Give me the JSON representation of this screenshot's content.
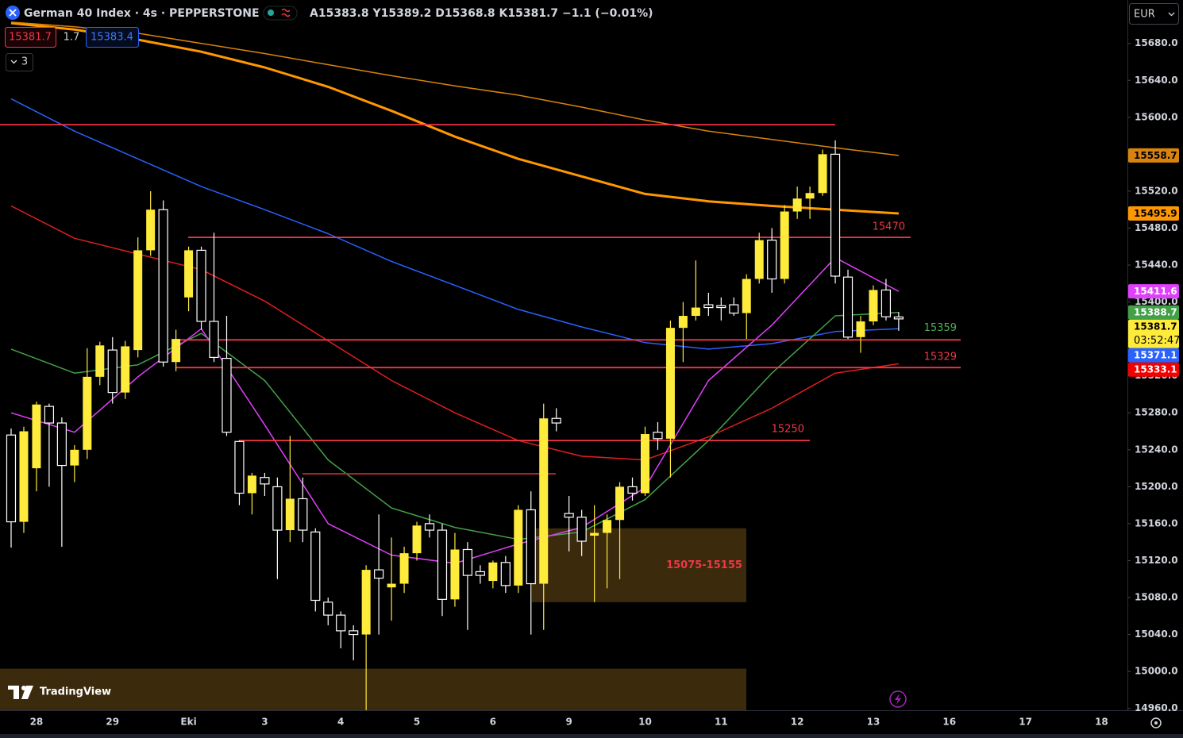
{
  "header": {
    "symbol": "German 40 Index · 4s · PEPPERSTONE",
    "ohlc_labels": [
      "A",
      "Y",
      "D",
      "K"
    ],
    "change": "−1.1 (−0.01%)",
    "bid": 15381.7,
    "spread": 1.7,
    "ask": 15383.4,
    "indicators": "3",
    "currency": "EUR",
    "countdown": "03:52:47",
    "logo": "TradingView"
  },
  "chart_data": {
    "type": "candlestick",
    "categories": [
      "28",
      "29",
      "Eki",
      "3",
      "4",
      "5",
      "6",
      "9",
      "10",
      "11",
      "12",
      "13",
      "16",
      "17",
      "18"
    ],
    "open": [
      15256,
      15162,
      15220,
      15287,
      15269,
      15223,
      15240,
      15319,
      15348,
      15302,
      15348,
      15456,
      15500,
      15335,
      15405,
      15456,
      15379,
      15339,
      15249,
      15193,
      15210,
      15200,
      15153,
      15187,
      15151,
      15075,
      15061,
      15044,
      15040,
      15110,
      15091,
      15095,
      15128,
      15160,
      15153,
      15078,
      15132,
      15108,
      15098,
      15118,
      15093,
      15175,
      15095,
      15274,
      15171,
      15167,
      15147,
      15150,
      15164,
      15200,
      15193,
      15259,
      15252,
      15372,
      15385,
      15397,
      15396,
      15397,
      15388,
      15425,
      15467,
      15425,
      15498,
      15512,
      15518,
      15560,
      15427,
      15362,
      15379,
      15413,
      15383.8
    ],
    "high": [
      15263,
      15265,
      15292,
      15290,
      15275,
      15245,
      15350,
      15357,
      15362,
      15358,
      15470,
      15520,
      15510,
      15370,
      15460,
      15460,
      15475,
      15385,
      15250,
      15215,
      15215,
      15210,
      15255,
      15210,
      15155,
      15080,
      15065,
      15050,
      15115,
      15170,
      15145,
      15135,
      15162,
      15170,
      15160,
      15150,
      15140,
      15115,
      15120,
      15125,
      15180,
      15195,
      15290,
      15285,
      15190,
      15175,
      15180,
      15170,
      15205,
      15210,
      15265,
      15270,
      15380,
      15400,
      15445,
      15410,
      15405,
      15405,
      15430,
      15475,
      15480,
      15505,
      15525,
      15525,
      15565,
      15575,
      15435,
      15385,
      15418,
      15425,
      15389.2
    ],
    "low": [
      15134,
      15150,
      15195,
      15200,
      15135,
      15205,
      15230,
      15310,
      15290,
      15295,
      15340,
      15450,
      15330,
      15325,
      15390,
      15370,
      15335,
      15255,
      15180,
      15170,
      15190,
      15100,
      15140,
      15140,
      15065,
      15050,
      15025,
      15012,
      14958,
      15040,
      15055,
      15085,
      15120,
      15145,
      15060,
      15070,
      15045,
      15095,
      15090,
      15085,
      15085,
      15040,
      15045,
      15260,
      15130,
      15125,
      15075,
      15090,
      15100,
      15185,
      15190,
      15240,
      15210,
      15335,
      15380,
      15385,
      15380,
      15385,
      15360,
      15420,
      15410,
      15420,
      15490,
      15490,
      15515,
      15420,
      15360,
      15345,
      15375,
      15380,
      15368.8
    ],
    "close": [
      15162,
      15260,
      15289,
      15269,
      15223,
      15240,
      15319,
      15353,
      15302,
      15352,
      15456,
      15500,
      15335,
      15360,
      15456,
      15379,
      15340,
      15259,
      15193,
      15212,
      15203,
      15153,
      15187,
      15153,
      15077,
      15061,
      15044,
      15040,
      15110,
      15101,
      15095,
      15128,
      15158,
      15153,
      15078,
      15132,
      15104,
      15104,
      15118,
      15093,
      15175,
      15095,
      15274,
      15269,
      15167,
      15141,
      15150,
      15164,
      15200,
      15193,
      15257,
      15252,
      15372,
      15385,
      15394,
      15394,
      15394,
      15388,
      15425,
      15467,
      15425,
      15498,
      15512,
      15518,
      15560,
      15428,
      15362,
      15379,
      15413,
      15384,
      15381.7
    ],
    "up_color": "#ffeb3b",
    "down_color": "#ffffff",
    "series_x": [
      0,
      5,
      10,
      15,
      20,
      25,
      30,
      35,
      40,
      45,
      50,
      55,
      60,
      65,
      70
    ],
    "series": [
      {
        "color": "#ff9800",
        "width": 3,
        "values": [
          15702,
          15695,
          15684,
          15671,
          15654,
          15633,
          15607,
          15579,
          15555,
          15536,
          15517,
          15509,
          15504,
          15500,
          15495.9
        ]
      },
      {
        "color": "#d9830f",
        "width": 1.5,
        "values": [
          15703,
          15698,
          15691,
          15680,
          15669,
          15657,
          15645,
          15634,
          15624,
          15611,
          15597,
          15585,
          15576,
          15567,
          15558.7
        ]
      },
      {
        "color": "#2962ff",
        "width": 1.5,
        "values": [
          15620,
          15585,
          15555,
          15525,
          15500,
          15474,
          15444,
          15418,
          15392,
          15373,
          15356,
          15349,
          15355,
          15368,
          15371.1
        ]
      },
      {
        "color": "#e01e1e",
        "width": 1.5,
        "values": [
          15504,
          15469,
          15452,
          15435,
          15401,
          15358,
          15315,
          15280,
          15250,
          15233,
          15229,
          15254,
          15285,
          15323,
          15333.1
        ]
      },
      {
        "color": "#43a047",
        "width": 1.5,
        "values": [
          15349,
          15323,
          15332,
          15366,
          15315,
          15229,
          15177,
          15156,
          15143,
          15151,
          15186,
          15250,
          15323,
          15385,
          15388.7
        ]
      },
      {
        "color": "#e040fb",
        "width": 1.5,
        "values": [
          15280,
          15259,
          15319,
          15371,
          15267,
          15160,
          15126,
          15117,
          15138,
          15156,
          15199,
          15315,
          15375,
          15448,
          15411.6
        ]
      }
    ],
    "levels": [
      {
        "value": 15592,
        "color": "#f23645"
      },
      {
        "value": 15470,
        "label": "15470",
        "color": "#f23645",
        "label_color": "#f23645"
      },
      {
        "value": 15359,
        "label": "15359",
        "color": "#f23645",
        "label_color": "#4caf50"
      },
      {
        "value": 15329,
        "label": "15329",
        "color": "#f23645",
        "label_color": "#f23645"
      },
      {
        "value": 15250,
        "label": "15250",
        "color": "#f23645",
        "label_color": "#f23645"
      },
      {
        "value": 15214,
        "color": "#b22a33"
      }
    ],
    "zones": [
      {
        "low": 15075,
        "high": 15155,
        "label": "15075-15155",
        "color": "#3b2a0c",
        "label_color": "#f23645"
      },
      {
        "low": 14940,
        "high": 15003,
        "color": "#3b2a0c"
      }
    ],
    "ylim": [
      14958,
      15727
    ],
    "yticks": [
      {
        "value": 14960,
        "label": "14960.0"
      },
      {
        "value": 15000,
        "label": "15000.0"
      },
      {
        "value": 15040,
        "label": "15040.0"
      },
      {
        "value": 15080,
        "label": "15080.0"
      },
      {
        "value": 15120,
        "label": "15120.0"
      },
      {
        "value": 15160,
        "label": "15160.0"
      },
      {
        "value": 15200,
        "label": "15200.0"
      },
      {
        "value": 15240,
        "label": "15240.0"
      },
      {
        "value": 15280,
        "label": "15280.0"
      },
      {
        "value": 15320,
        "label": "15320.0"
      },
      {
        "value": 15360,
        "label": "15360.0"
      },
      {
        "value": 15400,
        "label": "15400.0"
      },
      {
        "value": 15440,
        "label": "15440.0"
      },
      {
        "value": 15480,
        "label": "15480.0"
      },
      {
        "value": 15520,
        "label": "15520.0"
      },
      {
        "value": 15560,
        "label": "15560.0"
      },
      {
        "value": 15600,
        "label": "15600.0"
      },
      {
        "value": 15640,
        "label": "15640.0"
      },
      {
        "value": 15680,
        "label": "15680.0"
      }
    ],
    "grid": false
  }
}
